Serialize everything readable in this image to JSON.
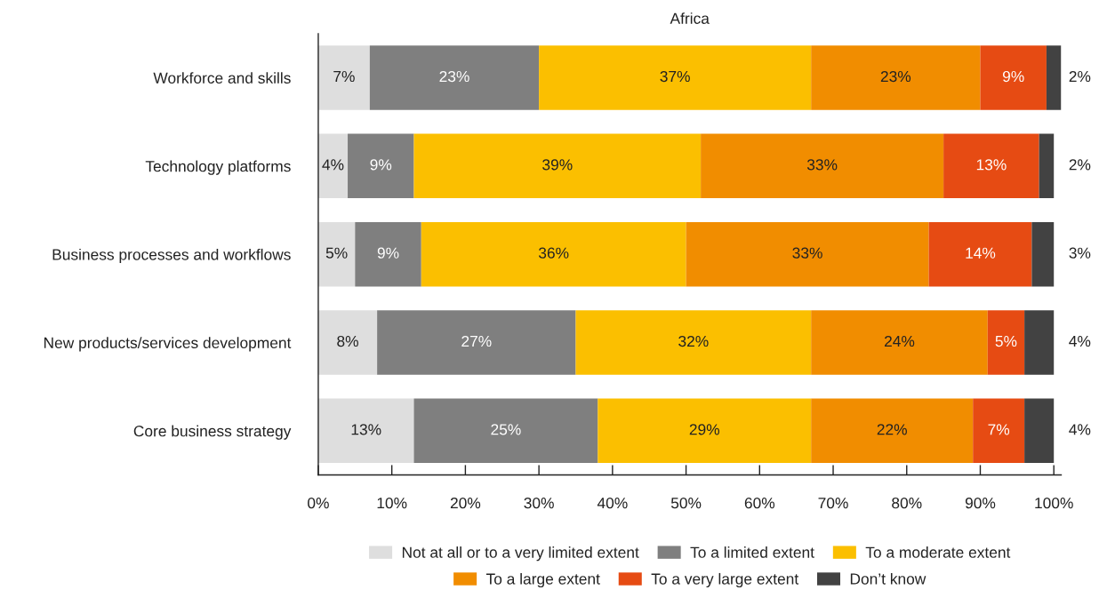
{
  "chart_data": {
    "type": "bar",
    "orientation": "horizontal",
    "stacked": true,
    "title": "Africa",
    "categories": [
      "Workforce and skills",
      "Technology platforms",
      "Business processes and workflows",
      "New products/services development",
      "Core business strategy"
    ],
    "series": [
      {
        "name": "Not at all or to a very limited extent",
        "color": "#dedede",
        "values": [
          7,
          4,
          5,
          8,
          13
        ],
        "value_labels": [
          "7%",
          "4%",
          "5%",
          "8%",
          "13%"
        ]
      },
      {
        "name": "To a limited extent",
        "color": "#7f7f7f",
        "values": [
          23,
          9,
          9,
          27,
          25
        ],
        "value_labels": [
          "23%",
          "9%",
          "9%",
          "27%",
          "25%"
        ]
      },
      {
        "name": "To a moderate extent",
        "color": "#fbbf00",
        "values": [
          37,
          39,
          36,
          32,
          29
        ],
        "value_labels": [
          "37%",
          "39%",
          "36%",
          "32%",
          "29%"
        ]
      },
      {
        "name": "To a large extent",
        "color": "#f18d00",
        "values": [
          23,
          33,
          33,
          24,
          22
        ],
        "value_labels": [
          "23%",
          "33%",
          "33%",
          "24%",
          "22%"
        ]
      },
      {
        "name": "To a very large extent",
        "color": "#e64b13",
        "values": [
          9,
          13,
          14,
          5,
          7
        ],
        "value_labels": [
          "9%",
          "13%",
          "14%",
          "5%",
          "7%"
        ]
      },
      {
        "name": "Don’t know",
        "color": "#424242",
        "values": [
          2,
          2,
          3,
          4,
          4
        ],
        "value_labels": [
          "2%",
          "2%",
          "3%",
          "4%",
          "4%"
        ]
      }
    ],
    "xlim": [
      0,
      101
    ],
    "xticks": [
      {
        "value": 0,
        "label": "0%"
      },
      {
        "value": 10,
        "label": "10%"
      },
      {
        "value": 20,
        "label": "20%"
      },
      {
        "value": 30,
        "label": "30%"
      },
      {
        "value": 40,
        "label": "40%"
      },
      {
        "value": 50,
        "label": "50%"
      },
      {
        "value": 60,
        "label": "60%"
      },
      {
        "value": 70,
        "label": "70%"
      },
      {
        "value": 80,
        "label": "80%"
      },
      {
        "value": 90,
        "label": "90%"
      },
      {
        "value": 100,
        "label": "100%"
      }
    ],
    "legend": "bottom",
    "grid": false
  }
}
